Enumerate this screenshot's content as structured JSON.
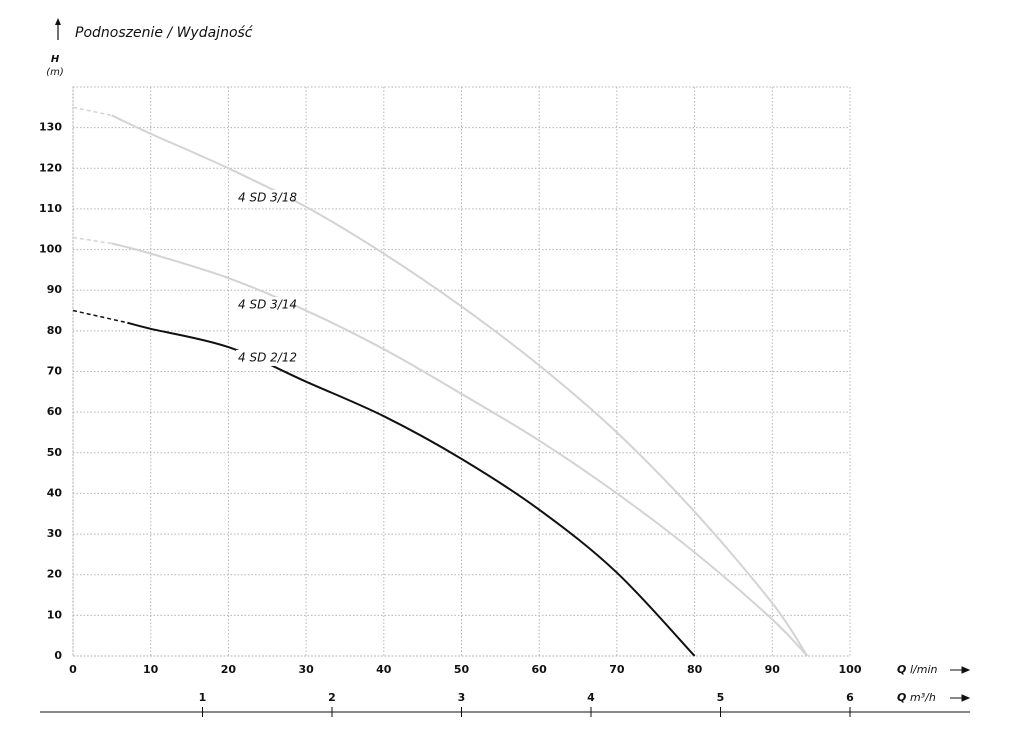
{
  "chart_data": {
    "type": "line",
    "title": "Podnoszenie / Wydajność",
    "y_label": {
      "symbol": "H",
      "unit": "(m)"
    },
    "x_label": {
      "symbol": "Q",
      "unit": "l/min"
    },
    "x2_label": {
      "symbol": "Q",
      "unit": "m³/h"
    },
    "xlim": [
      0,
      100
    ],
    "xticks": [
      0,
      10,
      20,
      30,
      40,
      50,
      60,
      70,
      80,
      90,
      100
    ],
    "x2lim": [
      0,
      6
    ],
    "x2ticks": [
      1,
      2,
      3,
      4,
      5,
      6
    ],
    "ylim": [
      0,
      140
    ],
    "yticks": [
      0,
      10,
      20,
      30,
      40,
      50,
      60,
      70,
      80,
      90,
      100,
      110,
      120,
      130
    ],
    "grid": true,
    "series": [
      {
        "name": "4 SD 3/18",
        "color": "#d3d3d3",
        "start_style": "dashed",
        "x": [
          0,
          5,
          10,
          20,
          30,
          40,
          50,
          60,
          70,
          80,
          90,
          94.5
        ],
        "values": [
          135,
          133,
          128.5,
          120,
          110.5,
          99,
          86,
          71.5,
          55,
          35.5,
          13,
          0
        ]
      },
      {
        "name": "4 SD 3/14",
        "color": "#d3d3d3",
        "start_style": "dashed",
        "x": [
          0,
          5,
          10,
          20,
          30,
          40,
          50,
          60,
          70,
          80,
          90,
          94.5
        ],
        "values": [
          103,
          101.5,
          99,
          93,
          85,
          75.5,
          64.5,
          53,
          40,
          25.5,
          9,
          0
        ]
      },
      {
        "name": "4 SD 2/12",
        "color": "#111111",
        "start_style": "dashed",
        "x": [
          0,
          7,
          10,
          20,
          30,
          40,
          50,
          60,
          70,
          80
        ],
        "values": [
          85,
          82,
          80.5,
          76,
          67.5,
          59,
          48.5,
          36,
          20.5,
          0
        ]
      }
    ]
  }
}
